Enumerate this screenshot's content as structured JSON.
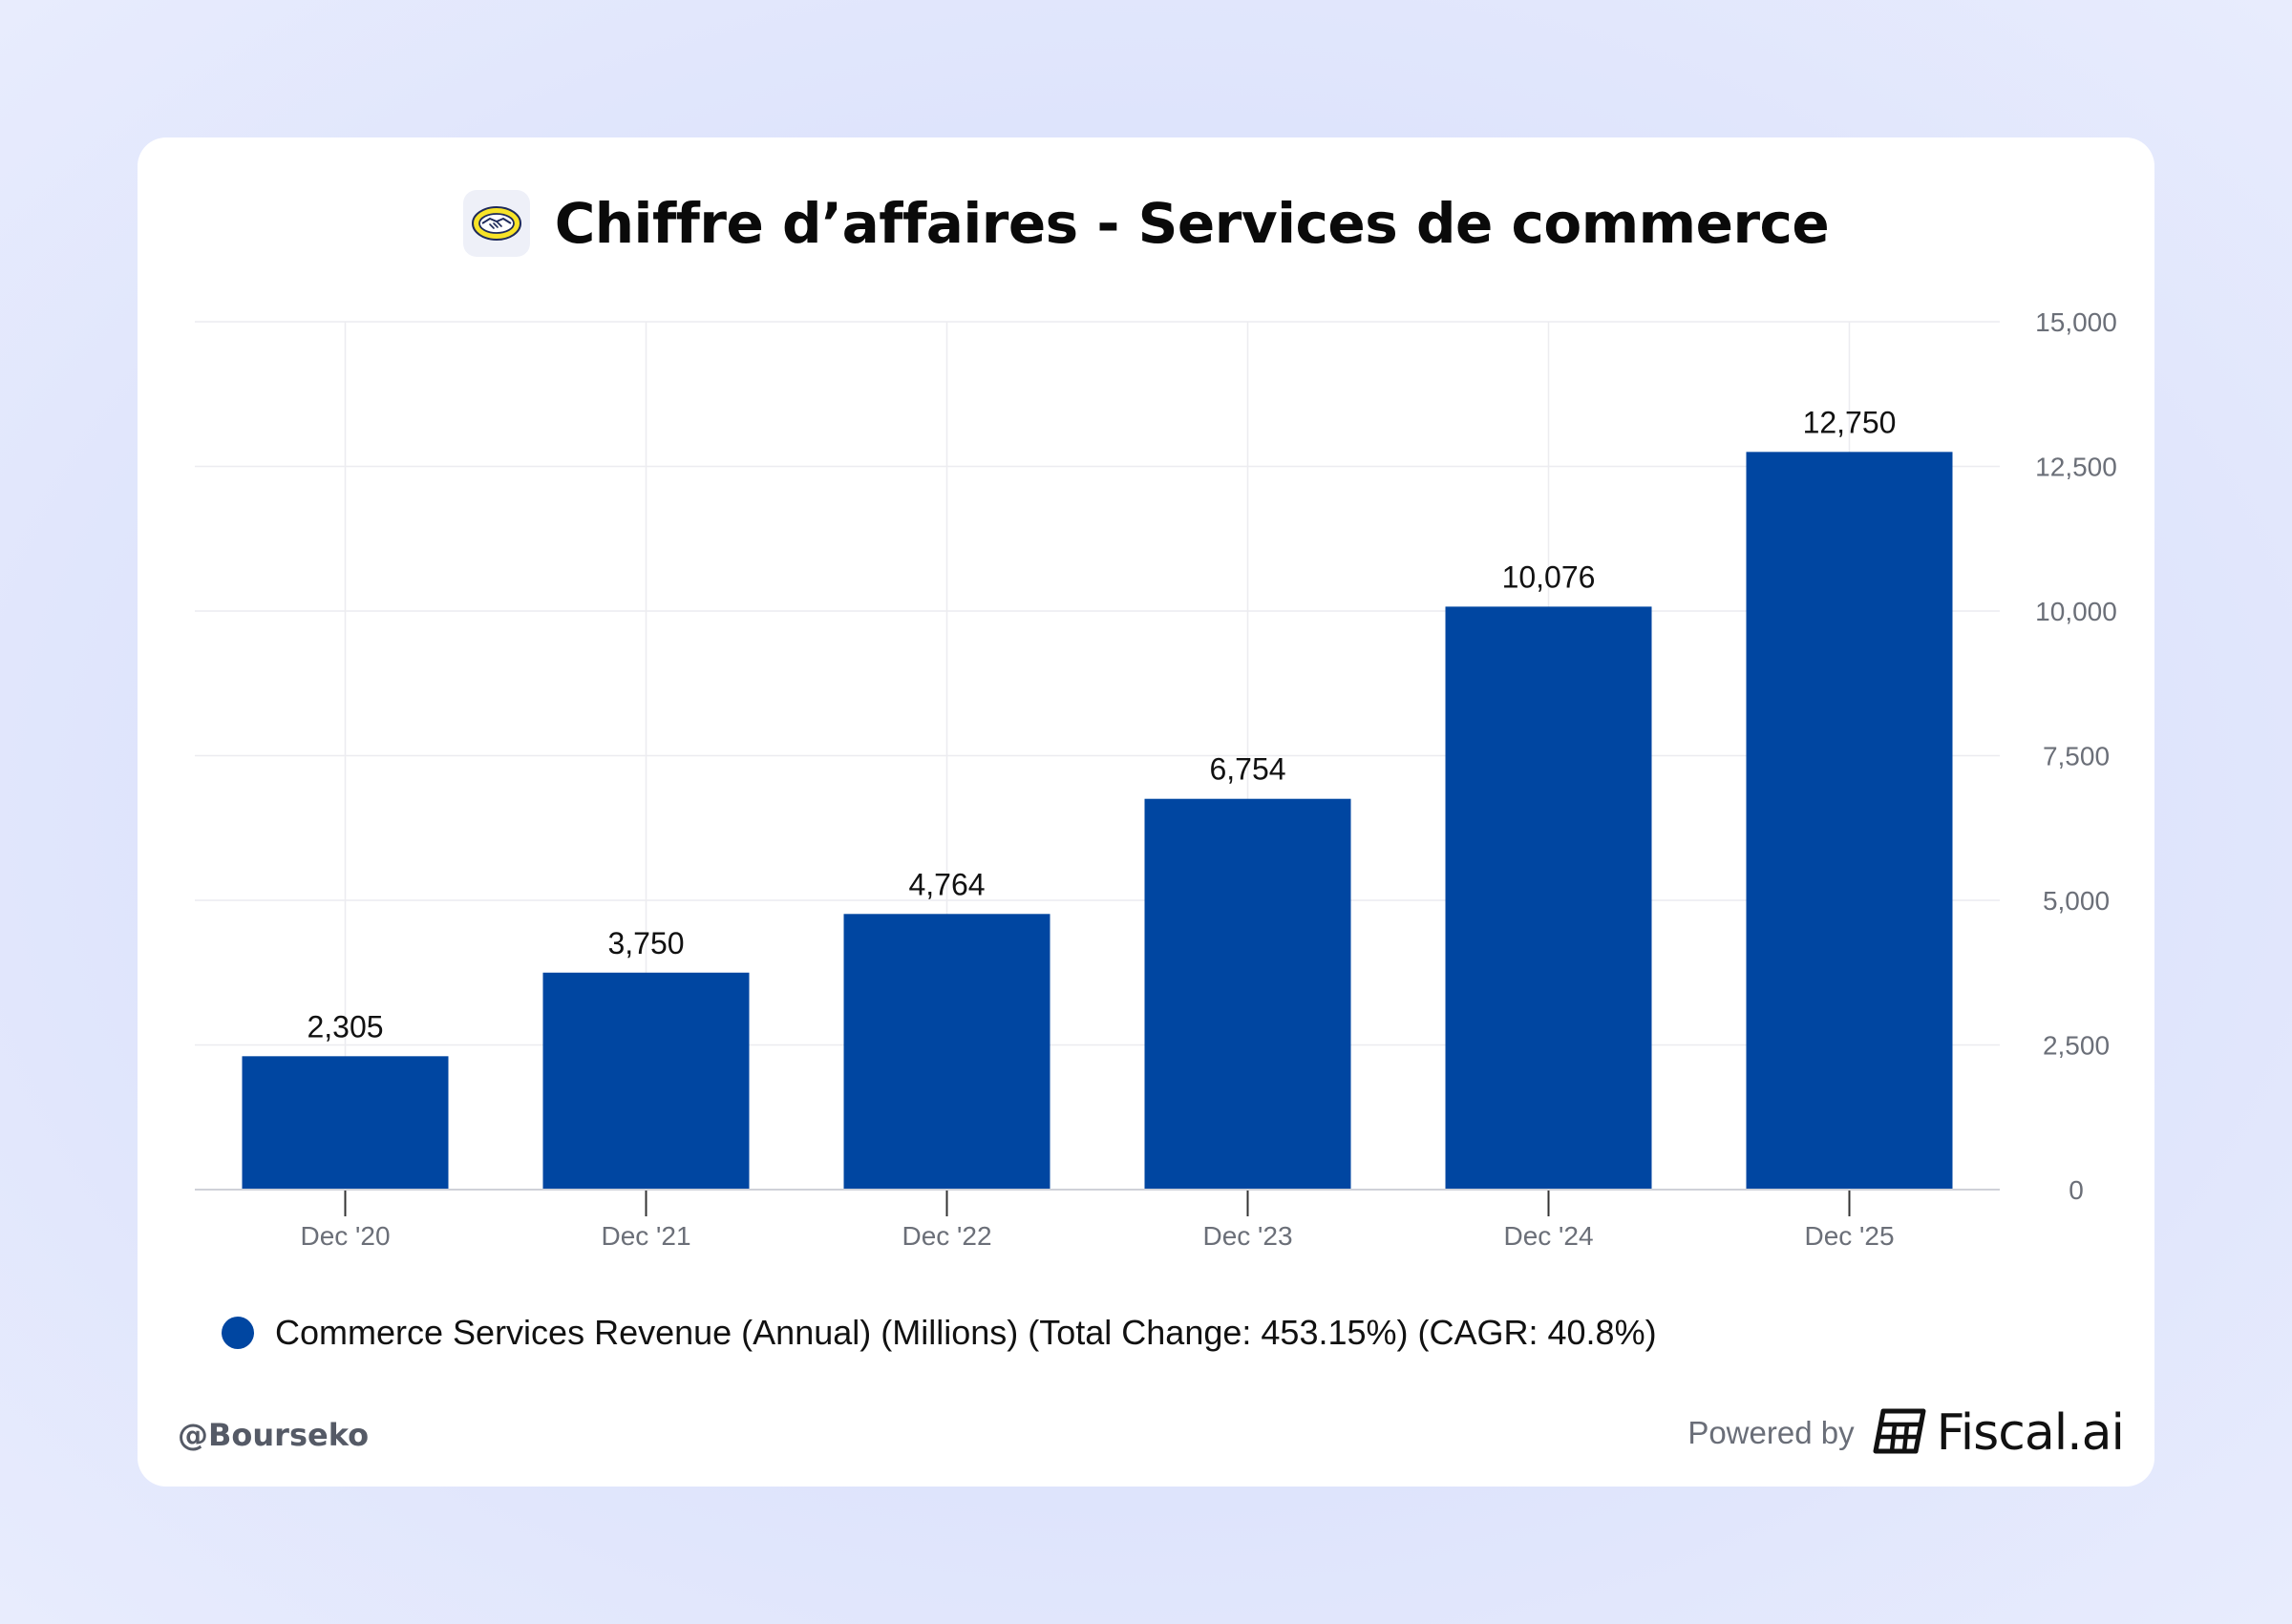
{
  "title": "Chiffre d’affaires - Services de commerce",
  "colors": {
    "bar": "#0046a1",
    "grid": "#ececf0",
    "axis_text": "#6b6f78",
    "label_text": "#111111",
    "logo_yellow": "#f7e328"
  },
  "chart_data": {
    "type": "bar",
    "title": "Chiffre d’affaires - Services de commerce",
    "categories": [
      "Dec '20",
      "Dec '21",
      "Dec '22",
      "Dec '23",
      "Dec '24",
      "Dec '25"
    ],
    "series": [
      {
        "name": "Commerce Services Revenue (Annual) (Millions) (Total Change: 453.15%) (CAGR: 40.8%)",
        "values": [
          2305,
          3750,
          4764,
          6754,
          10076,
          12750
        ],
        "labels": [
          "2,305",
          "3,750",
          "4,764",
          "6,754",
          "10,076",
          "12,750"
        ]
      }
    ],
    "y_axis_position": "right",
    "ylim": [
      0,
      15000
    ],
    "yticks": [
      0,
      2500,
      5000,
      7500,
      10000,
      12500,
      15000
    ],
    "ytick_labels": [
      "0",
      "2,500",
      "5,000",
      "7,500",
      "10,000",
      "12,500",
      "15,000"
    ],
    "xlabel": "",
    "ylabel": "",
    "grid": true,
    "legend_position": "bottom-left"
  },
  "legend": {
    "label": "Commerce Services Revenue (Annual) (Millions) (Total Change: 453.15%) (CAGR: 40.8%)"
  },
  "footer": {
    "handle": "@Bourseko",
    "powered_by": "Powered by",
    "brand": "Fiscal.ai"
  },
  "icons": {
    "company_logo": "handshake-logo-icon",
    "brand_logo": "fiscal-ai-logo-icon"
  }
}
